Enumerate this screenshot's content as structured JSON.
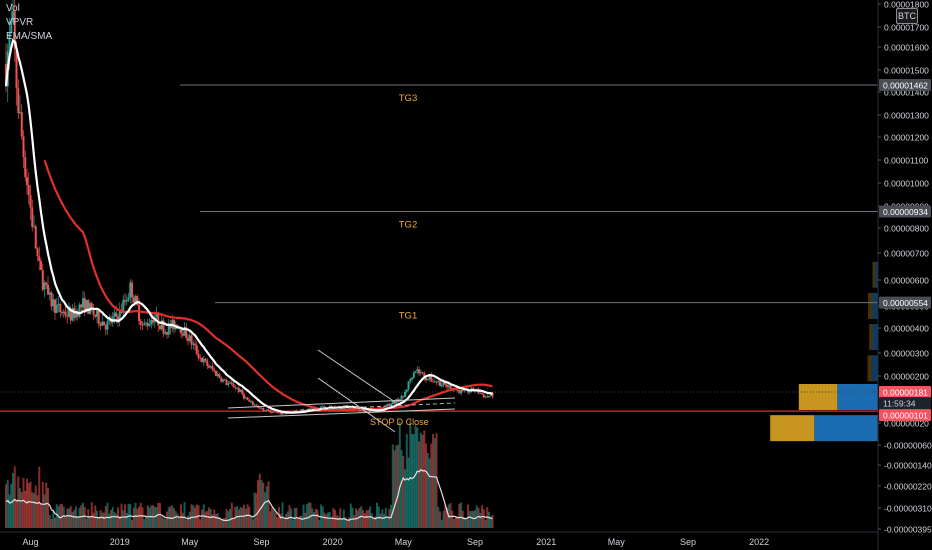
{
  "indicators": [
    "Vol",
    "VPVR",
    "EMA/SMA"
  ],
  "quote_badge": "BTC",
  "colors": {
    "background": "#000000",
    "candle_up": "#26a69a",
    "candle_down": "#ef5350",
    "ema": "#e0302a",
    "sma": "#ffffff",
    "target_line": "#6f727a",
    "target_label": "#f0a93a",
    "support_line": "#ff1e1e",
    "trend_line": "#c8c8c8",
    "vpvr_up": "#c8961e",
    "vpvr_down": "#1a6bb0",
    "price_tag_red": "#f7525f",
    "price_tag_gray": "#4a4d56"
  },
  "chart_data": {
    "type": "candlestick",
    "quote_currency": "BTC",
    "x_tick_labels": [
      "Aug",
      "2019",
      "May",
      "Sep",
      "2020",
      "May",
      "Sep",
      "2021",
      "May",
      "Sep",
      "2022"
    ],
    "y_axis": {
      "tick_labels": [
        "0.00001800",
        "0.00001700",
        "0.00001600",
        "0.00001500",
        "0.00001400",
        "0.00001300",
        "0.00001200",
        "0.00001100",
        "0.00001000",
        "0.00000900",
        "0.00000800",
        "0.00000700",
        "0.00000600",
        "0.00000500",
        "0.00000400",
        "0.00000300",
        "0.00000200",
        "0.00000020",
        "-0.00000060",
        "-0.00000140",
        "-0.00000220",
        "-0.00000310",
        "-0.00000395"
      ],
      "range": [
        -3.95e-06,
        1.8e-05
      ],
      "scale": "linear"
    },
    "price_path": [
      [
        "2018-06-20",
        1.55e-05
      ],
      [
        "2018-07-01",
        1.72e-05
      ],
      [
        "2018-07-10",
        1.4e-05
      ],
      [
        "2018-07-20",
        1.18e-05
      ],
      [
        "2018-08-01",
        9.5e-06
      ],
      [
        "2018-08-15",
        7e-06
      ],
      [
        "2018-09-01",
        5.7e-06
      ],
      [
        "2018-09-20",
        5.2e-06
      ],
      [
        "2018-10-10",
        5e-06
      ],
      [
        "2018-11-01",
        5.5e-06
      ],
      [
        "2018-11-20",
        5e-06
      ],
      [
        "2018-12-10",
        4.6e-06
      ],
      [
        "2019-01-01",
        5.1e-06
      ],
      [
        "2019-01-20",
        6.2e-06
      ],
      [
        "2019-02-10",
        4.5e-06
      ],
      [
        "2019-03-01",
        5e-06
      ],
      [
        "2019-03-20",
        4.4e-06
      ],
      [
        "2019-04-10",
        4.7e-06
      ],
      [
        "2019-05-01",
        4e-06
      ],
      [
        "2019-05-20",
        3.2e-06
      ],
      [
        "2019-06-10",
        2.7e-06
      ],
      [
        "2019-07-01",
        2.2e-06
      ],
      [
        "2019-07-20",
        2e-06
      ],
      [
        "2019-08-10",
        1.4e-06
      ],
      [
        "2019-09-01",
        1.1e-06
      ],
      [
        "2019-10-01",
        9e-07
      ],
      [
        "2019-11-01",
        1e-06
      ],
      [
        "2019-12-01",
        1.1e-06
      ],
      [
        "2020-01-01",
        1.2e-06
      ],
      [
        "2020-02-01",
        1.2e-06
      ],
      [
        "2020-03-01",
        1e-06
      ],
      [
        "2020-04-01",
        1.2e-06
      ],
      [
        "2020-05-01",
        1.6e-06
      ],
      [
        "2020-05-20",
        2.8e-06
      ],
      [
        "2020-06-10",
        2.4e-06
      ],
      [
        "2020-07-01",
        2.2e-06
      ],
      [
        "2020-07-20",
        2e-06
      ],
      [
        "2020-08-10",
        1.8e-06
      ],
      [
        "2020-09-01",
        1.9e-06
      ],
      [
        "2020-09-20",
        1.6e-06
      ],
      [
        "2020-10-01",
        1.7e-06
      ]
    ],
    "target_lines": [
      {
        "label": "TG3",
        "price": 1.462e-05,
        "tag": "0.00001462"
      },
      {
        "label": "TG2",
        "price": 9.34e-06,
        "tag": "0.00000934"
      },
      {
        "label": "TG1",
        "price": 5.54e-06,
        "tag": "0.00000554"
      }
    ],
    "support_line": {
      "price": 1.01e-06,
      "tag": "0.00000101"
    },
    "current_price": {
      "price": 1.81e-06,
      "tag": "0.00000181",
      "countdown": "11:59:34"
    },
    "annotations": [
      {
        "text": "STOP D Close"
      }
    ],
    "series": [
      {
        "name": "EMA"
      },
      {
        "name": "SMA"
      },
      {
        "name": "Vol"
      }
    ],
    "vpvr_rows": [
      {
        "price": 6.7e-06,
        "up": 0.25,
        "down": 0.25
      },
      {
        "price": 5.4e-06,
        "up": 0.4,
        "down": 0.5
      },
      {
        "price": 4.1e-06,
        "up": 0.3,
        "down": 0.5
      },
      {
        "price": 2.8e-06,
        "up": 0.4,
        "down": 0.55
      },
      {
        "price": 1.6e-06,
        "up": 3.5,
        "down": 3.7
      },
      {
        "price": 3e-07,
        "up": 4.0,
        "down": 5.8
      }
    ]
  }
}
